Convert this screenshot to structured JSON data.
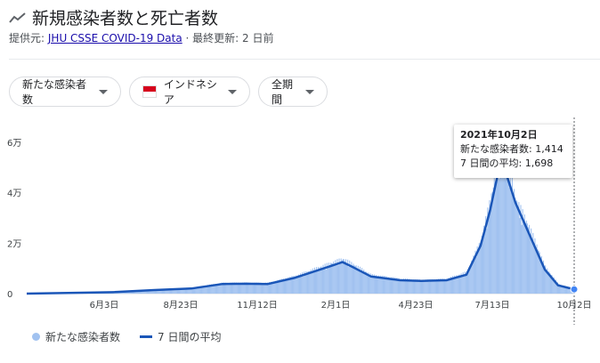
{
  "header": {
    "title": "新規感染者数と死亡者数",
    "source_prefix": "提供元:",
    "source": "JHU CSSE COVID-19 Data",
    "updated": "· 最終更新: 2 日前"
  },
  "chips": {
    "metric": "新たな感染者数",
    "country": "インドネシア",
    "period": "全期間"
  },
  "tooltip": {
    "date": "2021年10月2日",
    "cases_line": "新たな感染者数: 1,414",
    "avg_line": "7 日間の平均: 1,698"
  },
  "legend": {
    "cases": "新たな感染者数",
    "avg": "7 日間の平均"
  },
  "colors": {
    "bars": "#a1c2f0",
    "line": "#1a56b8"
  },
  "chart_data": {
    "type": "bar",
    "x_start": "2020-03-02",
    "x_end": "2021-10-02",
    "x_tick_labels": [
      "6月3日",
      "8月23日",
      "11月12日",
      "2月1日",
      "4月23日",
      "7月13日",
      "10月2日"
    ],
    "y_tick_labels": [
      "0",
      "2万",
      "4万",
      "6万"
    ],
    "ylim": [
      0,
      60000
    ],
    "grid": false,
    "legend_position": "bottom-left",
    "series": [
      {
        "name": "新たな感染者数",
        "type": "bar",
        "points": [
          [
            "2020-03-02",
            0
          ],
          [
            "2020-04-15",
            400
          ],
          [
            "2020-06-03",
            700
          ],
          [
            "2020-07-15",
            1500
          ],
          [
            "2020-08-23",
            2200
          ],
          [
            "2020-09-25",
            4000
          ],
          [
            "2020-10-20",
            4000
          ],
          [
            "2020-11-12",
            4000
          ],
          [
            "2020-12-10",
            6500
          ],
          [
            "2021-01-10",
            10500
          ],
          [
            "2021-01-30",
            13000
          ],
          [
            "2021-02-10",
            11000
          ],
          [
            "2021-03-01",
            7000
          ],
          [
            "2021-04-01",
            5500
          ],
          [
            "2021-04-23",
            5000
          ],
          [
            "2021-05-20",
            5500
          ],
          [
            "2021-06-10",
            8000
          ],
          [
            "2021-06-25",
            20000
          ],
          [
            "2021-07-05",
            35000
          ],
          [
            "2021-07-13",
            50000
          ],
          [
            "2021-07-20",
            55000
          ],
          [
            "2021-08-01",
            35000
          ],
          [
            "2021-08-15",
            25000
          ],
          [
            "2021-09-01",
            10000
          ],
          [
            "2021-09-15",
            3500
          ],
          [
            "2021-10-02",
            1414
          ]
        ]
      },
      {
        "name": "7 日間の平均",
        "type": "line",
        "points": [
          [
            "2020-03-02",
            0
          ],
          [
            "2020-04-15",
            300
          ],
          [
            "2020-06-03",
            600
          ],
          [
            "2020-07-15",
            1400
          ],
          [
            "2020-08-23",
            2000
          ],
          [
            "2020-09-25",
            3800
          ],
          [
            "2020-10-20",
            3900
          ],
          [
            "2020-11-12",
            3800
          ],
          [
            "2020-12-10",
            6200
          ],
          [
            "2021-01-10",
            10000
          ],
          [
            "2021-01-30",
            12500
          ],
          [
            "2021-02-10",
            10500
          ],
          [
            "2021-03-01",
            6800
          ],
          [
            "2021-04-01",
            5300
          ],
          [
            "2021-04-23",
            5000
          ],
          [
            "2021-05-20",
            5300
          ],
          [
            "2021-06-10",
            7500
          ],
          [
            "2021-06-25",
            19000
          ],
          [
            "2021-07-05",
            33000
          ],
          [
            "2021-07-13",
            47000
          ],
          [
            "2021-07-20",
            50000
          ],
          [
            "2021-08-01",
            36000
          ],
          [
            "2021-08-15",
            24000
          ],
          [
            "2021-09-01",
            9500
          ],
          [
            "2021-09-15",
            3300
          ],
          [
            "2021-10-02",
            1698
          ]
        ]
      }
    ]
  }
}
